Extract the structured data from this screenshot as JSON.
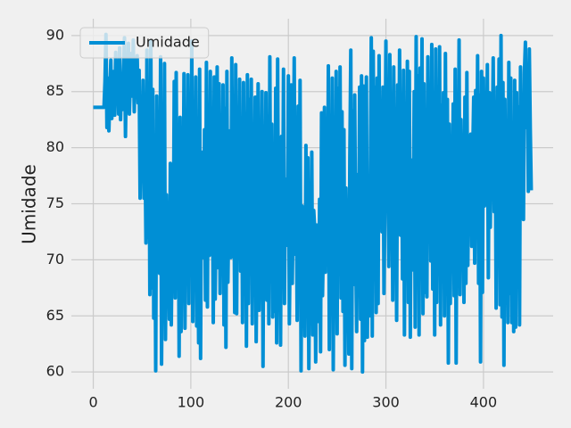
{
  "chart_data": {
    "type": "line",
    "ylabel": "Umidade",
    "grid": true,
    "legend": "upper left",
    "xlim": [
      -22.45,
      471.45
    ],
    "ylim": [
      58.5,
      91.5
    ],
    "xticks": [
      0,
      100,
      200,
      300,
      400
    ],
    "yticks": [
      60,
      65,
      70,
      75,
      80,
      85,
      90
    ],
    "series": [
      {
        "name": "Umidade",
        "color": "#008fd5",
        "values": [
          83.6,
          83.6,
          83.6,
          83.6,
          83.6,
          83.6,
          83.6,
          83.6,
          83.6,
          83.6,
          83.6,
          83.6,
          85.9,
          90.1,
          81.8,
          86.2,
          81.5,
          84.9,
          87.8,
          82.6,
          85.3,
          86.8,
          82.9,
          88.5,
          84.1,
          87.2,
          83.0,
          88.9,
          82.5,
          86.4,
          83.4,
          86.7,
          89.8,
          81.0,
          87.5,
          84.2,
          89.3,
          83.0,
          86.1,
          88.4,
          84.6,
          89.6,
          83.2,
          87.9,
          85.0,
          88.2,
          84.0,
          86.9,
          75.5,
          82.4,
          77.2,
          86.0,
          75.5,
          80.3,
          71.5,
          88.7,
          72.0,
          85.3,
          66.9,
          89.5,
          67.5,
          85.2,
          64.8,
          79.0,
          60.1,
          84.6,
          70.2,
          76.9,
          68.8,
          88.1,
          60.7,
          74.3,
          69.0,
          87.5,
          62.9,
          75.8,
          69.2,
          72.5,
          64.7,
          78.6,
          64.2,
          73.2,
          69.3,
          85.9,
          66.6,
          86.7,
          72.1,
          81.4,
          61.4,
          82.7,
          63.6,
          75.0,
          70.9,
          86.6,
          63.9,
          78.7,
          70.8,
          86.5,
          66.1,
          79.4,
          71.6,
          89.5,
          64.5,
          77.9,
          71.2,
          86.3,
          64.1,
          74.6,
          62.6,
          87.0,
          61.2,
          79.6,
          75.4,
          70.2,
          81.6,
          66.4,
          87.6,
          65.8,
          83.6,
          70.4,
          86.8,
          72.2,
          80.6,
          64.4,
          86.3,
          66.5,
          75.6,
          87.2,
          69.3,
          85.7,
          67.0,
          79.3,
          71.9,
          85.6,
          64.2,
          83.5,
          62.2,
          86.8,
          68.0,
          74.6,
          81.5,
          70.2,
          88.0,
          72.9,
          77.8,
          65.3,
          87.4,
          65.2,
          82.8,
          72.5,
          86.1,
          69.0,
          81.4,
          64.4,
          85.8,
          71.3,
          83.0,
          62.3,
          86.5,
          66.1,
          84.3,
          72.5,
          86.1,
          64.3,
          80.9,
          70.3,
          84.5,
          62.7,
          73.8,
          85.7,
          65.5,
          75.7,
          71.9,
          85.0,
          60.5,
          79.3,
          71.7,
          84.9,
          66.4,
          82.8,
          64.3,
          88.1,
          69.0,
          82.1,
          64.9,
          78.1,
          65.4,
          85.3,
          62.6,
          87.9,
          68.0,
          75.4,
          62.4,
          81.0,
          69.5,
          87.0,
          66.1,
          77.2,
          75.7,
          71.3,
          86.4,
          64.3,
          72.9,
          85.6,
          67.9,
          74.9,
          88.0,
          70.5,
          78.3,
          64.6,
          83.7,
          68.1,
          86.0,
          60.1,
          74.8,
          70.1,
          73.9,
          63.2,
          80.2,
          66.6,
          79.1,
          60.3,
          74.1,
          67.6,
          79.6,
          63.3,
          74.4,
          72.8,
          60.9,
          73.1,
          67.7,
          64.5,
          75.4,
          61.8,
          83.1,
          66.8,
          72.0,
          83.6,
          68.9,
          81.9,
          70.6,
          87.3,
          62.0,
          81.7,
          66.9,
          86.2,
          60.2,
          77.1,
          67.8,
          86.8,
          63.4,
          85.3,
          69.1,
          87.2,
          66.6,
          83.2,
          65.4,
          81.6,
          60.6,
          76.4,
          69.2,
          74.6,
          61.6,
          79.0,
          88.7,
          60.3,
          83.3,
          67.8,
          84.7,
          71.4,
          63.6,
          77.6,
          69.0,
          85.4,
          64.7,
          86.4,
          60.0,
          85.5,
          62.8,
          71.6,
          86.3,
          63.1,
          76.3,
          65.0,
          77.1,
          89.8,
          63.2,
          88.6,
          73.6,
          85.4,
          65.3,
          86.2,
          66.1,
          88.2,
          72.9,
          80.7,
          72.5,
          85.4,
          67.0,
          75.0,
          89.5,
          74.9,
          80.3,
          69.4,
          88.3,
          73.1,
          83.9,
          66.4,
          87.2,
          72.4,
          80.2,
          64.6,
          85.6,
          73.5,
          88.7,
          72.2,
          84.2,
          68.3,
          86.9,
          63.3,
          83.4,
          70.5,
          87.7,
          66.2,
          86.8,
          63.1,
          78.9,
          69.1,
          72.5,
          85.0,
          64.0,
          89.9,
          70.4,
          86.4,
          63.3,
          87.1,
          69.6,
          89.7,
          65.2,
          85.7,
          67.1,
          80.4,
          66.7,
          88.1,
          73.0,
          84.4,
          69.9,
          89.2,
          67.4,
          82.5,
          63.3,
          88.8,
          66.2,
          82.0,
          70.6,
          89.0,
          64.2,
          83.8,
          69.8,
          84.9,
          65.0,
          88.4,
          69.8,
          84.3,
          60.8,
          82.1,
          66.1,
          78.9,
          74.2,
          83.9,
          66.8,
          87.0,
          60.8,
          83.0,
          71.8,
          89.6,
          66.9,
          82.5,
          75.0,
          80.2,
          66.2,
          84.5,
          67.9,
          86.7,
          69.5,
          80.4,
          74.4,
          81.2,
          71.2,
          79.3,
          84.5,
          69.7,
          85.1,
          73.8,
          88.2,
          67.9,
          84.7,
          60.9,
          86.8,
          67.1,
          86.2,
          74.8,
          83.7,
          76.6,
          87.4,
          68.4,
          84.9,
          72.9,
          81.7,
          79.6,
          88.0,
          74.3,
          83.9,
          65.7,
          85.4,
          74.6,
          87.9,
          66.0,
          90.0,
          64.9,
          85.8,
          60.6,
          84.3,
          69.6,
          80.5,
          64.4,
          87.6,
          67.0,
          86.2,
          64.4,
          82.1,
          63.6,
          86.0,
          64.0,
          84.9,
          71.8,
          83.6,
          64.2,
          87.2,
          75.4,
          79.7,
          73.6,
          86.7,
          89.4,
          81.8,
          87.3,
          76.1,
          88.8,
          81.6,
          76.2
        ]
      }
    ]
  }
}
